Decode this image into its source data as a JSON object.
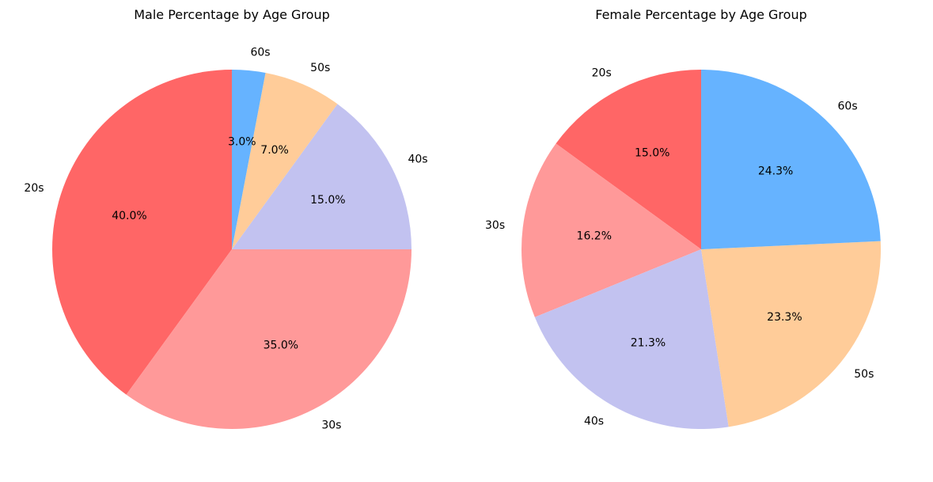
{
  "chart_data": [
    {
      "type": "pie",
      "title": "Male Percentage by Age Group",
      "categories": [
        "20s",
        "30s",
        "40s",
        "50s",
        "60s"
      ],
      "values": [
        40.0,
        35.0,
        15.0,
        7.0,
        3.0
      ],
      "value_labels": [
        "40.0%",
        "35.0%",
        "15.0%",
        "7.0%",
        "3.0%"
      ],
      "colors": [
        "#ff6666",
        "#ff9999",
        "#c2c2f0",
        "#ffcc99",
        "#66b3ff"
      ],
      "start_angle_deg": 90,
      "direction": "counterclockwise"
    },
    {
      "type": "pie",
      "title": "Female Percentage by Age Group",
      "categories": [
        "20s",
        "30s",
        "40s",
        "50s",
        "60s"
      ],
      "values": [
        15.0,
        16.2,
        21.3,
        23.3,
        24.3
      ],
      "value_labels": [
        "15.0%",
        "16.2%",
        "21.3%",
        "23.3%",
        "24.3%"
      ],
      "colors": [
        "#ff6666",
        "#ff9999",
        "#c2c2f0",
        "#ffcc99",
        "#66b3ff"
      ],
      "start_angle_deg": 90,
      "direction": "counterclockwise"
    }
  ]
}
